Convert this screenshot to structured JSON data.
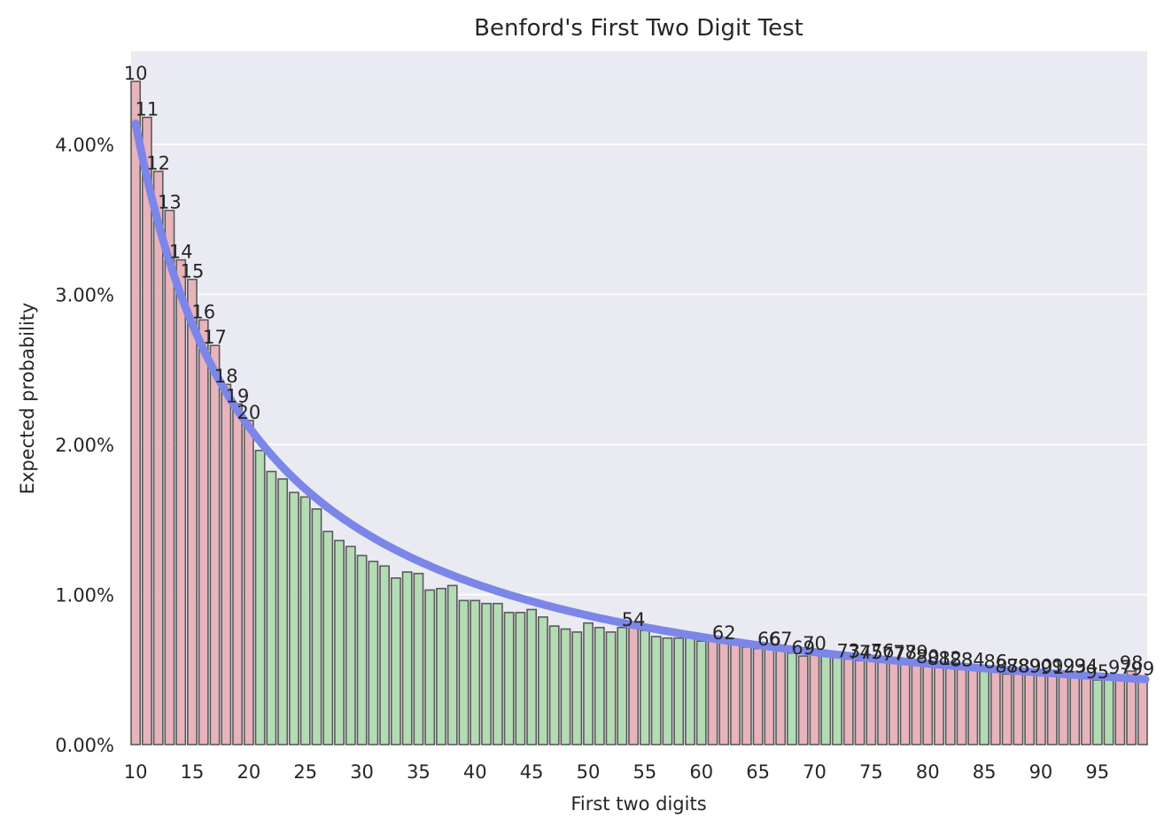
{
  "chart_data": {
    "type": "bar",
    "title": "Benford's First Two Digit Test",
    "xlabel": "First two digits",
    "ylabel": "Expected probability",
    "ylim": [
      0,
      0.0462
    ],
    "xlim": [
      9.6,
      99.4
    ],
    "grid": true,
    "legend": "none",
    "colors": {
      "background": "#eaeaf2",
      "grid": "#ffffff",
      "bar_outside_tolerance": "#e8b4bc",
      "bar_within_tolerance": "#b4dcb4",
      "bar_edge": "#5a5a5a",
      "expected_curve": "#7b86e8"
    },
    "y_ticks": [
      {
        "value": 0.0,
        "label": "0.00%"
      },
      {
        "value": 0.01,
        "label": "1.00%"
      },
      {
        "value": 0.02,
        "label": "2.00%"
      },
      {
        "value": 0.03,
        "label": "3.00%"
      },
      {
        "value": 0.04,
        "label": "4.00%"
      }
    ],
    "x_ticks": [
      {
        "value": 10,
        "label": "10"
      },
      {
        "value": 15,
        "label": "15"
      },
      {
        "value": 20,
        "label": "20"
      },
      {
        "value": 25,
        "label": "25"
      },
      {
        "value": 30,
        "label": "30"
      },
      {
        "value": 35,
        "label": "35"
      },
      {
        "value": 40,
        "label": "40"
      },
      {
        "value": 45,
        "label": "45"
      },
      {
        "value": 50,
        "label": "50"
      },
      {
        "value": 55,
        "label": "55"
      },
      {
        "value": 60,
        "label": "60"
      },
      {
        "value": 65,
        "label": "65"
      },
      {
        "value": 70,
        "label": "70"
      },
      {
        "value": 75,
        "label": "75"
      },
      {
        "value": 80,
        "label": "80"
      },
      {
        "value": 85,
        "label": "85"
      },
      {
        "value": 90,
        "label": "90"
      },
      {
        "value": 95,
        "label": "95"
      }
    ],
    "digits": [
      10,
      11,
      12,
      13,
      14,
      15,
      16,
      17,
      18,
      19,
      20,
      21,
      22,
      23,
      24,
      25,
      26,
      27,
      28,
      29,
      30,
      31,
      32,
      33,
      34,
      35,
      36,
      37,
      38,
      39,
      40,
      41,
      42,
      43,
      44,
      45,
      46,
      47,
      48,
      49,
      50,
      51,
      52,
      53,
      54,
      55,
      56,
      57,
      58,
      59,
      60,
      61,
      62,
      63,
      64,
      65,
      66,
      67,
      68,
      69,
      70,
      71,
      72,
      73,
      74,
      75,
      76,
      77,
      78,
      79,
      80,
      81,
      82,
      83,
      84,
      85,
      86,
      87,
      88,
      89,
      90,
      91,
      92,
      93,
      94,
      95,
      96,
      97,
      98,
      99
    ],
    "values": [
      0.0442,
      0.0418,
      0.0382,
      0.0356,
      0.0323,
      0.031,
      0.0283,
      0.0266,
      0.024,
      0.0227,
      0.0216,
      0.0196,
      0.0182,
      0.0177,
      0.0168,
      0.0165,
      0.0157,
      0.0142,
      0.0136,
      0.0132,
      0.0126,
      0.0122,
      0.0119,
      0.0111,
      0.0115,
      0.0114,
      0.0103,
      0.0104,
      0.0106,
      0.0096,
      0.0096,
      0.0094,
      0.0094,
      0.0088,
      0.0088,
      0.009,
      0.0085,
      0.0079,
      0.0077,
      0.0075,
      0.0081,
      0.0078,
      0.0075,
      0.0078,
      0.0078,
      0.0076,
      0.0072,
      0.0071,
      0.0071,
      0.0071,
      0.0069,
      0.0069,
      0.0069,
      0.0068,
      0.0065,
      0.0064,
      0.0065,
      0.0065,
      0.0061,
      0.0059,
      0.0062,
      0.006,
      0.0058,
      0.0057,
      0.0056,
      0.0056,
      0.0057,
      0.0055,
      0.0056,
      0.0056,
      0.0053,
      0.0052,
      0.0052,
      0.0051,
      0.0051,
      0.005,
      0.005,
      0.0047,
      0.0047,
      0.0047,
      0.0047,
      0.0046,
      0.0047,
      0.0047,
      0.0047,
      0.0043,
      0.0043,
      0.0046,
      0.0049,
      0.0045
    ],
    "within_tolerance": [
      false,
      false,
      false,
      false,
      false,
      false,
      false,
      false,
      false,
      false,
      false,
      true,
      true,
      true,
      true,
      true,
      true,
      true,
      true,
      true,
      true,
      true,
      true,
      true,
      true,
      true,
      true,
      true,
      true,
      true,
      true,
      true,
      true,
      true,
      true,
      true,
      true,
      true,
      true,
      true,
      true,
      true,
      true,
      true,
      false,
      true,
      true,
      true,
      true,
      true,
      true,
      false,
      false,
      false,
      false,
      false,
      false,
      false,
      true,
      false,
      false,
      true,
      true,
      false,
      false,
      false,
      false,
      false,
      false,
      false,
      false,
      false,
      false,
      false,
      false,
      true,
      false,
      false,
      false,
      false,
      false,
      false,
      false,
      false,
      false,
      true,
      true,
      false,
      false,
      false
    ],
    "annotations": [
      {
        "x": 10,
        "label": "10"
      },
      {
        "x": 11,
        "label": "11"
      },
      {
        "x": 12,
        "label": "12"
      },
      {
        "x": 13,
        "label": "13"
      },
      {
        "x": 14,
        "label": "14"
      },
      {
        "x": 15,
        "label": "15"
      },
      {
        "x": 16,
        "label": "16"
      },
      {
        "x": 17,
        "label": "17"
      },
      {
        "x": 18,
        "label": "18"
      },
      {
        "x": 19,
        "label": "19"
      },
      {
        "x": 20,
        "label": "20"
      },
      {
        "x": 54,
        "label": "54"
      },
      {
        "x": 62,
        "label": "62"
      },
      {
        "x": 66,
        "label": "66"
      },
      {
        "x": 67,
        "label": "67"
      },
      {
        "x": 69,
        "label": "69"
      },
      {
        "x": 70,
        "label": "70"
      },
      {
        "x": 73,
        "label": "73"
      },
      {
        "x": 74,
        "label": "74"
      },
      {
        "x": 75,
        "label": "75"
      },
      {
        "x": 76,
        "label": "76"
      },
      {
        "x": 77,
        "label": "77"
      },
      {
        "x": 78,
        "label": "78"
      },
      {
        "x": 79,
        "label": "79"
      },
      {
        "x": 80,
        "label": "80"
      },
      {
        "x": 81,
        "label": "81"
      },
      {
        "x": 82,
        "label": "82"
      },
      {
        "x": 83,
        "label": "83"
      },
      {
        "x": 84,
        "label": "84"
      },
      {
        "x": 86,
        "label": "86"
      },
      {
        "x": 87,
        "label": "87"
      },
      {
        "x": 88,
        "label": "88"
      },
      {
        "x": 89,
        "label": "89"
      },
      {
        "x": 90,
        "label": "90"
      },
      {
        "x": 91,
        "label": "91"
      },
      {
        "x": 92,
        "label": "92"
      },
      {
        "x": 93,
        "label": "93"
      },
      {
        "x": 94,
        "label": "94"
      },
      {
        "x": 95,
        "label": "95"
      },
      {
        "x": 97,
        "label": "97"
      },
      {
        "x": 98,
        "label": "98"
      },
      {
        "x": 99,
        "label": "99"
      }
    ],
    "expected_curve": "log10(1 + 1/d)"
  }
}
